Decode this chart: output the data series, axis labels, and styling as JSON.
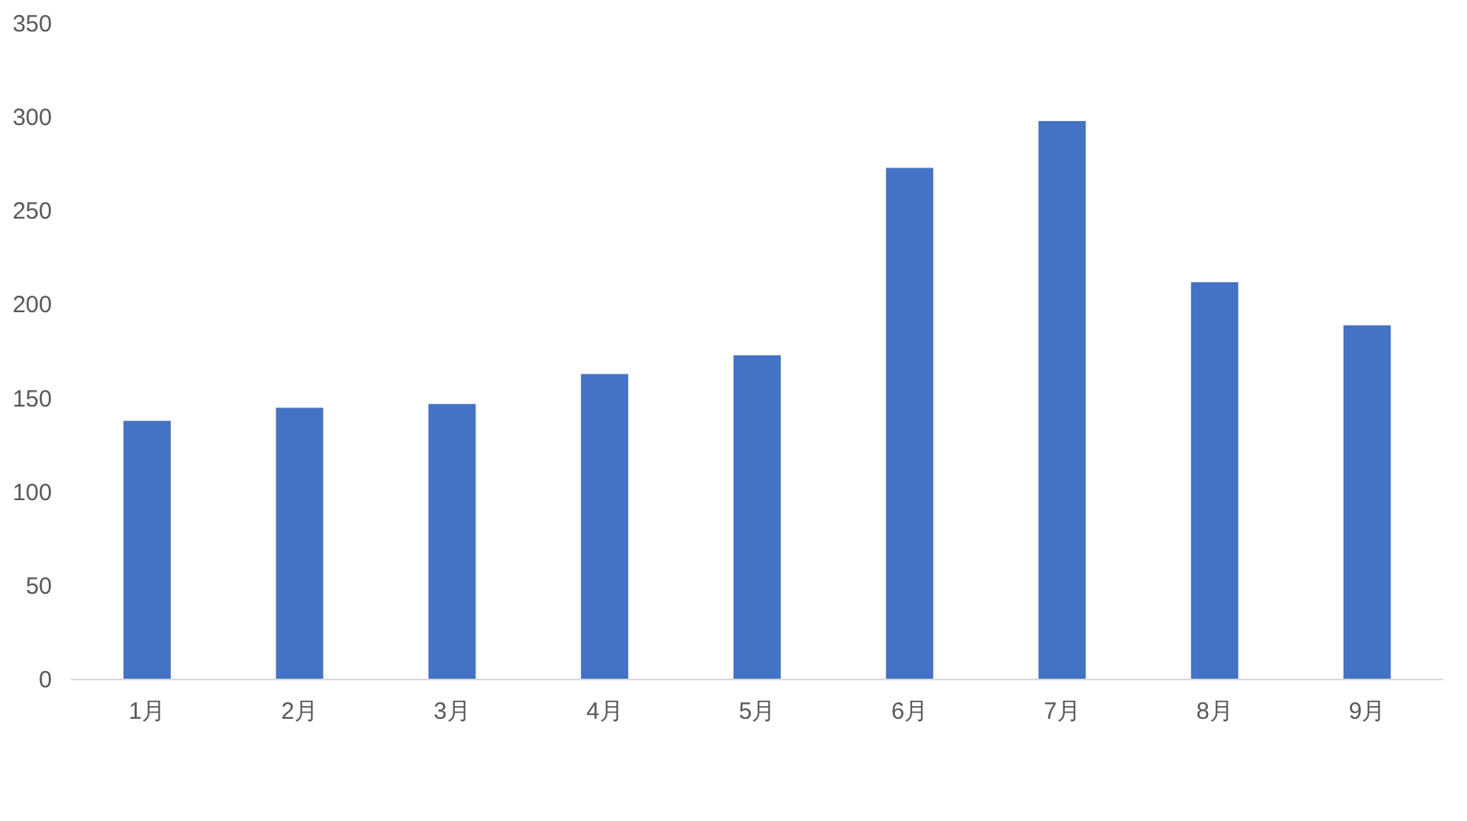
{
  "chart_data": {
    "type": "bar",
    "categories": [
      "1月",
      "2月",
      "3月",
      "4月",
      "5月",
      "6月",
      "7月",
      "8月",
      "9月"
    ],
    "values": [
      138,
      145,
      147,
      163,
      173,
      273,
      298,
      212,
      189
    ],
    "color": "#4472c4",
    "ylim": [
      0,
      350
    ],
    "yticks": [
      0,
      50,
      100,
      150,
      200,
      250,
      300,
      350
    ]
  }
}
